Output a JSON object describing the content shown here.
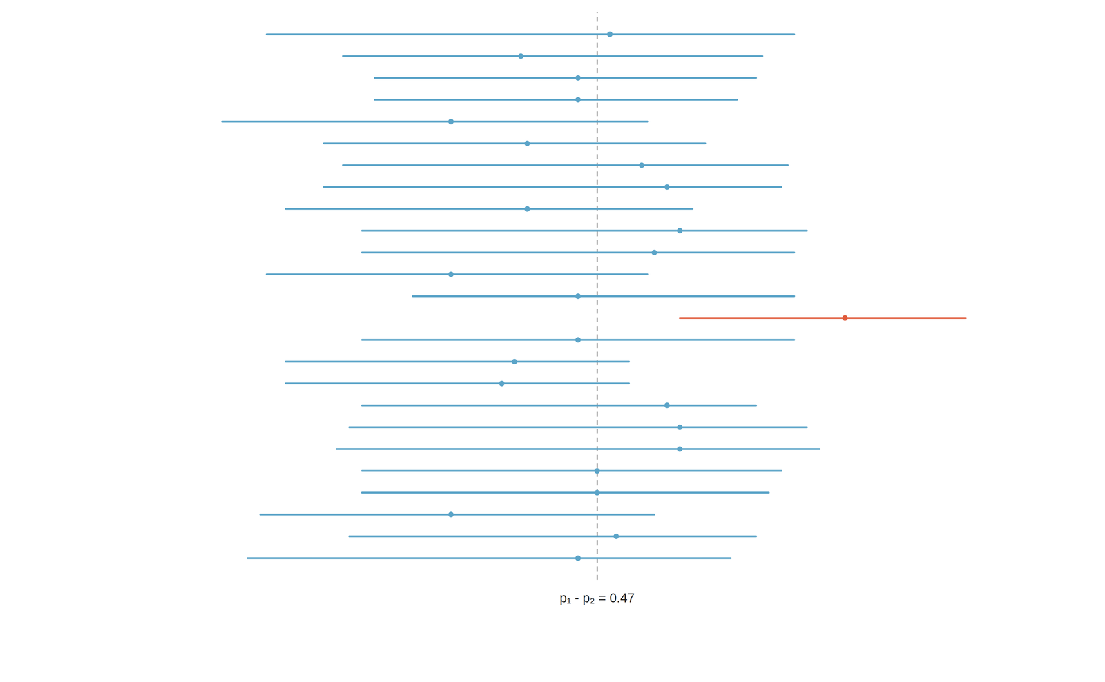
{
  "chart_data": {
    "type": "interval",
    "values": [
      0.49,
      0.35,
      0.44,
      0.44,
      0.24,
      0.36,
      0.54,
      0.58,
      0.36,
      0.6,
      0.56,
      0.24,
      0.44,
      0.86,
      0.44,
      0.34,
      0.32,
      0.58,
      0.6,
      0.6,
      0.47,
      0.47,
      0.24,
      0.5,
      0.44
    ],
    "lower": [
      -0.05,
      0.07,
      0.12,
      0.12,
      -0.12,
      0.04,
      0.07,
      0.04,
      -0.02,
      0.1,
      0.1,
      -0.05,
      0.18,
      0.6,
      0.1,
      -0.02,
      -0.02,
      0.1,
      0.08,
      0.06,
      0.1,
      0.1,
      -0.06,
      0.08,
      -0.08
    ],
    "upper": [
      0.78,
      0.73,
      0.72,
      0.69,
      0.55,
      0.64,
      0.77,
      0.76,
      0.62,
      0.8,
      0.78,
      0.55,
      0.78,
      1.05,
      0.78,
      0.52,
      0.52,
      0.72,
      0.8,
      0.82,
      0.76,
      0.74,
      0.56,
      0.72,
      0.68
    ],
    "colors": [
      "#5BA4C8",
      "#5BA4C8",
      "#5BA4C8",
      "#5BA4C8",
      "#5BA4C8",
      "#5BA4C8",
      "#5BA4C8",
      "#5BA4C8",
      "#5BA4C8",
      "#5BA4C8",
      "#5BA4C8",
      "#5BA4C8",
      "#5BA4C8",
      "#E05A3A",
      "#5BA4C8",
      "#5BA4C8",
      "#5BA4C8",
      "#5BA4C8",
      "#5BA4C8",
      "#5BA4C8",
      "#5BA4C8",
      "#5BA4C8",
      "#5BA4C8",
      "#5BA4C8",
      "#5BA4C8"
    ],
    "xlim": [
      -0.45,
      1.25
    ],
    "tick_labels": false,
    "grid": false,
    "annotations": [
      {
        "text": "p₁ - p₂ = 0.47",
        "x": 0.47,
        "line_style": "dashed",
        "color": "#1a1a1a"
      }
    ]
  }
}
